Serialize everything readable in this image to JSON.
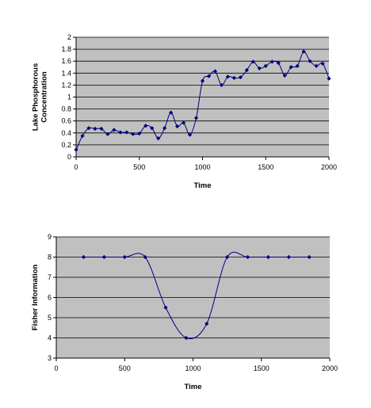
{
  "chart_data": [
    {
      "type": "line",
      "xlabel": "Time",
      "ylabel": "Lake Phosphorous Concentration",
      "ylabel_lines": [
        "Lake Phosphorous",
        "Concentration"
      ],
      "xlim": [
        0,
        2000
      ],
      "ylim": [
        0,
        2
      ],
      "xticks": [
        0,
        500,
        1000,
        1500,
        2000
      ],
      "yticks": [
        0,
        0.2,
        0.4,
        0.6,
        0.8,
        1,
        1.2,
        1.4,
        1.6,
        1.8,
        2
      ],
      "xtick_labels": [
        "0",
        "500",
        "1000",
        "1500",
        "2000"
      ],
      "ytick_labels": [
        "0",
        "0.2",
        "0.4",
        "0.6",
        "0.8",
        "1",
        "1.2",
        "1.4",
        "1.6",
        "1.8",
        "2"
      ],
      "grid": "horizontal",
      "legend": "none",
      "series": [
        {
          "x": [
            0,
            50,
            100,
            150,
            200,
            250,
            300,
            350,
            400,
            450,
            500,
            550,
            600,
            650,
            700,
            750,
            800,
            850,
            900,
            950,
            1000,
            1050,
            1100,
            1150,
            1200,
            1250,
            1300,
            1350,
            1400,
            1450,
            1500,
            1550,
            1600,
            1650,
            1700,
            1750,
            1800,
            1850,
            1900,
            1950,
            2000
          ],
          "y": [
            0.12,
            0.35,
            0.48,
            0.47,
            0.47,
            0.38,
            0.45,
            0.41,
            0.41,
            0.38,
            0.39,
            0.52,
            0.48,
            0.31,
            0.48,
            0.74,
            0.51,
            0.57,
            0.37,
            0.65,
            1.27,
            1.35,
            1.43,
            1.2,
            1.34,
            1.32,
            1.33,
            1.45,
            1.59,
            1.48,
            1.52,
            1.59,
            1.57,
            1.36,
            1.5,
            1.52,
            1.76,
            1.6,
            1.52,
            1.56,
            1.31
          ]
        }
      ]
    },
    {
      "type": "line",
      "xlabel": "Time",
      "ylabel": "Fisher Information",
      "xlim": [
        0,
        2000
      ],
      "ylim": [
        3,
        9
      ],
      "xticks": [
        0,
        500,
        1000,
        1500,
        2000
      ],
      "yticks": [
        3,
        4,
        5,
        6,
        7,
        8,
        9
      ],
      "xtick_labels": [
        "0",
        "500",
        "1000",
        "1500",
        "2000"
      ],
      "ytick_labels": [
        "3",
        "4",
        "5",
        "6",
        "7",
        "8",
        "9"
      ],
      "grid": "horizontal",
      "legend": "none",
      "series": [
        {
          "x": [
            200,
            350,
            500,
            650,
            800,
            950,
            1100,
            1250,
            1400,
            1550,
            1700,
            1850
          ],
          "y": [
            8,
            8,
            8,
            8,
            5.5,
            4,
            4.7,
            8,
            8,
            8,
            8,
            8
          ]
        }
      ]
    }
  ],
  "style": {
    "plot_background": "#c0c0c0",
    "gridline_color": "#000000",
    "series_color": "#000080"
  }
}
